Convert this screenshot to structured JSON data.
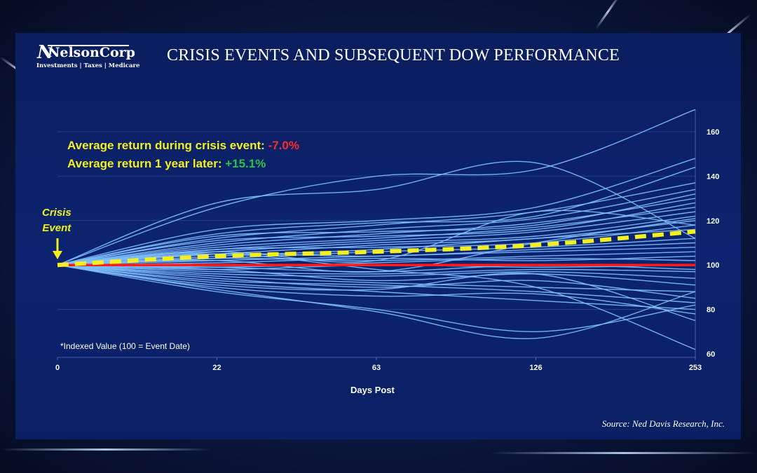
{
  "logo": {
    "mark": "N",
    "name": "NelsonCorp",
    "tagline": "Investments | Taxes | Medicare"
  },
  "colors": {
    "series": "#7fc0ff",
    "average": "#f4f01e",
    "baseline": "#ff1a1a",
    "panel": "#0b2168"
  },
  "annotations": {
    "avg_during_label": "Average return during crisis event:",
    "avg_during_value": "-7.0%",
    "avg_later_label": "Average return 1 year later:",
    "avg_later_value": "+15.1%",
    "crisis_line1": "Crisis",
    "crisis_line2": "Event",
    "footnote": "*Indexed Value (100 = Event Date)",
    "source": "Source: Ned Davis Research, Inc."
  },
  "chart_data": {
    "type": "line",
    "title": "CRISIS EVENTS AND SUBSEQUENT DOW PERFORMANCE",
    "xlabel": "Days Post",
    "ylabel": "",
    "categories": [
      "0",
      "22",
      "63",
      "126",
      "253"
    ],
    "ylim": [
      60,
      170
    ],
    "yticks": [
      60,
      80,
      100,
      120,
      140,
      160
    ],
    "grid": true,
    "yaxis_side": "right",
    "average": {
      "values": [
        100,
        104,
        106,
        109,
        115.1
      ]
    },
    "baseline": {
      "values": [
        100,
        100,
        100,
        100,
        100
      ]
    },
    "series": [
      {
        "values": [
          100,
          128,
          134,
          146,
          112
        ]
      },
      {
        "values": [
          100,
          126,
          140,
          143,
          170
        ]
      },
      {
        "values": [
          100,
          116,
          120,
          126,
          148
        ]
      },
      {
        "values": [
          100,
          114,
          119,
          122,
          144
        ]
      },
      {
        "values": [
          100,
          112,
          118,
          124,
          137
        ]
      },
      {
        "values": [
          100,
          110,
          116,
          121,
          134
        ]
      },
      {
        "values": [
          100,
          113,
          115,
          118,
          132
        ]
      },
      {
        "values": [
          100,
          109,
          114,
          119,
          130
        ]
      },
      {
        "values": [
          100,
          111,
          113,
          116,
          128
        ]
      },
      {
        "values": [
          100,
          108,
          112,
          117,
          126
        ]
      },
      {
        "values": [
          100,
          107,
          111,
          115,
          124
        ]
      },
      {
        "values": [
          100,
          106,
          110,
          113,
          122
        ]
      },
      {
        "values": [
          100,
          105,
          109,
          112,
          120
        ]
      },
      {
        "values": [
          100,
          107,
          108,
          110,
          118
        ]
      },
      {
        "values": [
          100,
          104,
          107,
          112,
          116
        ]
      },
      {
        "values": [
          100,
          103,
          106,
          108,
          112
        ]
      },
      {
        "values": [
          100,
          105,
          104,
          107,
          110
        ]
      },
      {
        "values": [
          100,
          102,
          104,
          106,
          108
        ]
      },
      {
        "values": [
          100,
          103,
          102,
          104,
          106
        ]
      },
      {
        "values": [
          100,
          101,
          103,
          102,
          104
        ]
      },
      {
        "values": [
          100,
          99,
          101,
          103,
          102
        ]
      },
      {
        "values": [
          100,
          98,
          100,
          99,
          100
        ]
      },
      {
        "values": [
          100,
          99,
          97,
          100,
          98
        ]
      },
      {
        "values": [
          100,
          97,
          96,
          98,
          97
        ]
      },
      {
        "values": [
          100,
          96,
          95,
          97,
          94
        ]
      },
      {
        "values": [
          100,
          98,
          93,
          96,
          91
        ]
      },
      {
        "values": [
          100,
          95,
          92,
          90,
          88
        ]
      },
      {
        "values": [
          100,
          94,
          90,
          93,
          85
        ]
      },
      {
        "values": [
          100,
          93,
          91,
          88,
          83
        ]
      },
      {
        "values": [
          100,
          92,
          88,
          84,
          80
        ]
      },
      {
        "values": [
          100,
          91,
          89,
          96,
          75
        ]
      },
      {
        "values": [
          100,
          90,
          86,
          87,
          78
        ]
      },
      {
        "values": [
          100,
          88,
          80,
          70,
          82
        ]
      },
      {
        "values": [
          100,
          89,
          79,
          67,
          88
        ]
      },
      {
        "values": [
          100,
          105,
          98,
          90,
          62
        ]
      },
      {
        "values": [
          100,
          102,
          97,
          110,
          121
        ]
      },
      {
        "values": [
          100,
          106,
          102,
          124,
          118
        ]
      }
    ]
  }
}
